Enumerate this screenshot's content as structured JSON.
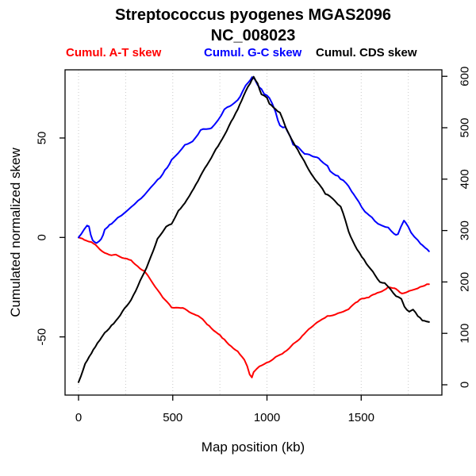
{
  "chart": {
    "title": "Streptococcus pyogenes MGAS2096",
    "subtitle": "NC_008023",
    "xlabel": "Map position (kb)",
    "ylabel_left": "Cumulated normalized skew",
    "legend": [
      {
        "label": "Cumul. A-T skew",
        "color": "#FF0000"
      },
      {
        "label": "Cumul. G-C skew",
        "color": "#0000FF"
      },
      {
        "label": "Cumul. CDS skew",
        "color": "#000000"
      }
    ]
  },
  "chart_data": {
    "type": "line",
    "title": "Streptococcus pyogenes MGAS2096",
    "subtitle": "NC_008023",
    "xlabel": "Map position (kb)",
    "ylabel_left": "Cumulated normalized skew",
    "legend_position": "top",
    "grid": "vertical-dotted",
    "grid_color": "#C8C8C8",
    "gridlines_kb": [
      0,
      250,
      500,
      750,
      1000,
      1250,
      1500,
      1750
    ],
    "x_ticks": [
      0,
      500,
      1000,
      1500
    ],
    "y_left_ticks": [
      -50,
      0,
      50
    ],
    "y_right_ticks": [
      0,
      100,
      200,
      300,
      400,
      500,
      600
    ],
    "x_range_kb": [
      0,
      1928
    ],
    "y_left_range": [
      -82,
      84
    ],
    "y_right_range": [
      -20,
      612
    ],
    "series": [
      {
        "name": "Cumul. A-T skew",
        "color": "#FF0000",
        "axis": "left",
        "points": [
          [
            0,
            0
          ],
          [
            20,
            -1
          ],
          [
            40,
            -2
          ],
          [
            68,
            -3
          ],
          [
            100,
            -5
          ],
          [
            139,
            -7.5
          ],
          [
            175,
            -8.5
          ],
          [
            209,
            -9
          ],
          [
            245,
            -10
          ],
          [
            279,
            -11.5
          ],
          [
            300,
            -13
          ],
          [
            315,
            -14.5
          ],
          [
            349,
            -17
          ],
          [
            367,
            -19.5
          ],
          [
            385,
            -22
          ],
          [
            419,
            -26
          ],
          [
            447,
            -30
          ],
          [
            470,
            -32
          ],
          [
            494,
            -34.5
          ],
          [
            530,
            -35.5
          ],
          [
            564,
            -36
          ],
          [
            600,
            -38
          ],
          [
            634,
            -40
          ],
          [
            670,
            -42.5
          ],
          [
            705,
            -45.5
          ],
          [
            740,
            -48.5
          ],
          [
            774,
            -51.5
          ],
          [
            810,
            -54.5
          ],
          [
            845,
            -57.5
          ],
          [
            880,
            -62
          ],
          [
            895,
            -65
          ],
          [
            908,
            -69
          ],
          [
            920,
            -70.5
          ],
          [
            929,
            -68
          ],
          [
            945,
            -66.5
          ],
          [
            960,
            -65
          ],
          [
            999,
            -62.5
          ],
          [
            1035,
            -61
          ],
          [
            1069,
            -59
          ],
          [
            1105,
            -56.5
          ],
          [
            1139,
            -54
          ],
          [
            1175,
            -50.5
          ],
          [
            1209,
            -47.5
          ],
          [
            1245,
            -44
          ],
          [
            1279,
            -42
          ],
          [
            1321,
            -40
          ],
          [
            1349,
            -39.5
          ],
          [
            1391,
            -38
          ],
          [
            1433,
            -36
          ],
          [
            1470,
            -33
          ],
          [
            1503,
            -30.5
          ],
          [
            1540,
            -29.5
          ],
          [
            1573,
            -28.5
          ],
          [
            1610,
            -26.5
          ],
          [
            1643,
            -24.5
          ],
          [
            1665,
            -25
          ],
          [
            1685,
            -26
          ],
          [
            1705,
            -27.5
          ],
          [
            1727,
            -28
          ],
          [
            1755,
            -27
          ],
          [
            1783,
            -26
          ],
          [
            1800,
            -25.5
          ],
          [
            1825,
            -24.5
          ],
          [
            1860,
            -23.5
          ]
        ]
      },
      {
        "name": "Cumul. G-C skew",
        "color": "#0000FF",
        "axis": "left",
        "points": [
          [
            0,
            0
          ],
          [
            15,
            2
          ],
          [
            30,
            4.5
          ],
          [
            45,
            6.5
          ],
          [
            55,
            6
          ],
          [
            65,
            2
          ],
          [
            75,
            -0.5
          ],
          [
            85,
            -1.5
          ],
          [
            95,
            -2
          ],
          [
            110,
            -1.5
          ],
          [
            120,
            -0.5
          ],
          [
            130,
            1.5
          ],
          [
            139,
            4
          ],
          [
            155,
            5.5
          ],
          [
            175,
            7
          ],
          [
            192,
            8.5
          ],
          [
            209,
            10
          ],
          [
            227,
            11
          ],
          [
            245,
            12.5
          ],
          [
            262,
            13.5
          ],
          [
            279,
            15
          ],
          [
            297,
            16.5
          ],
          [
            315,
            18
          ],
          [
            332,
            19
          ],
          [
            349,
            20.5
          ],
          [
            367,
            22.5
          ],
          [
            385,
            24.5
          ],
          [
            402,
            26.5
          ],
          [
            419,
            28.5
          ],
          [
            433,
            30
          ],
          [
            447,
            32
          ],
          [
            458,
            34
          ],
          [
            470,
            35
          ],
          [
            482,
            37
          ],
          [
            494,
            39
          ],
          [
            512,
            41
          ],
          [
            530,
            43
          ],
          [
            548,
            45
          ],
          [
            564,
            47
          ],
          [
            578,
            47.5
          ],
          [
            590,
            48
          ],
          [
            605,
            48.5
          ],
          [
            620,
            50
          ],
          [
            634,
            51.5
          ],
          [
            648,
            53.5
          ],
          [
            662,
            54
          ],
          [
            678,
            54
          ],
          [
            695,
            54.5
          ],
          [
            705,
            55
          ],
          [
            722,
            57
          ],
          [
            740,
            59
          ],
          [
            757,
            61.5
          ],
          [
            774,
            64.5
          ],
          [
            790,
            65.5
          ],
          [
            810,
            66.5
          ],
          [
            828,
            68
          ],
          [
            845,
            69.5
          ],
          [
            858,
            71
          ],
          [
            872,
            74
          ],
          [
            887,
            77
          ],
          [
            900,
            78.5
          ],
          [
            912,
            80
          ],
          [
            921,
            81
          ],
          [
            935,
            80
          ],
          [
            950,
            77
          ],
          [
            971,
            74.5
          ],
          [
            985,
            72
          ],
          [
            1000,
            71
          ],
          [
            1013,
            70
          ],
          [
            1028,
            67
          ],
          [
            1045,
            63
          ],
          [
            1058,
            59
          ],
          [
            1069,
            56.5
          ],
          [
            1085,
            55.5
          ],
          [
            1097,
            55.5
          ],
          [
            1110,
            53
          ],
          [
            1125,
            50.5
          ],
          [
            1139,
            47
          ],
          [
            1155,
            46
          ],
          [
            1175,
            44.5
          ],
          [
            1200,
            42.5
          ],
          [
            1225,
            41.5
          ],
          [
            1245,
            41
          ],
          [
            1265,
            41
          ],
          [
            1285,
            39
          ],
          [
            1300,
            38
          ],
          [
            1321,
            36.5
          ],
          [
            1335,
            34
          ],
          [
            1349,
            33
          ],
          [
            1365,
            32
          ],
          [
            1377,
            31.5
          ],
          [
            1390,
            30
          ],
          [
            1405,
            29
          ],
          [
            1420,
            27.5
          ],
          [
            1433,
            26
          ],
          [
            1450,
            23
          ],
          [
            1470,
            20
          ],
          [
            1487,
            17.5
          ],
          [
            1503,
            15
          ],
          [
            1520,
            13
          ],
          [
            1540,
            11
          ],
          [
            1557,
            9.5
          ],
          [
            1573,
            8
          ],
          [
            1590,
            7
          ],
          [
            1610,
            6
          ],
          [
            1628,
            5
          ],
          [
            1643,
            4.5
          ],
          [
            1660,
            3
          ],
          [
            1675,
            1.5
          ],
          [
            1685,
            1
          ],
          [
            1695,
            1.5
          ],
          [
            1710,
            5
          ],
          [
            1727,
            8.5
          ],
          [
            1738,
            7
          ],
          [
            1750,
            5
          ],
          [
            1765,
            2.5
          ],
          [
            1783,
            0.5
          ],
          [
            1800,
            -1.5
          ],
          [
            1815,
            -3
          ],
          [
            1825,
            -4
          ],
          [
            1840,
            -5.5
          ],
          [
            1860,
            -7
          ]
        ]
      },
      {
        "name": "Cumul. CDS skew",
        "color": "#000000",
        "axis": "right",
        "points": [
          [
            0,
            5
          ],
          [
            35,
            40
          ],
          [
            68,
            62
          ],
          [
            100,
            80
          ],
          [
            139,
            100
          ],
          [
            175,
            115
          ],
          [
            209,
            128
          ],
          [
            245,
            148
          ],
          [
            279,
            166
          ],
          [
            315,
            192
          ],
          [
            349,
            218
          ],
          [
            385,
            250
          ],
          [
            419,
            284
          ],
          [
            447,
            300
          ],
          [
            465,
            310
          ],
          [
            494,
            316
          ],
          [
            515,
            328
          ],
          [
            530,
            340
          ],
          [
            564,
            352
          ],
          [
            600,
            376
          ],
          [
            634,
            398
          ],
          [
            670,
            420
          ],
          [
            705,
            440
          ],
          [
            740,
            462
          ],
          [
            774,
            484
          ],
          [
            810,
            512
          ],
          [
            845,
            536
          ],
          [
            865,
            552
          ],
          [
            887,
            570
          ],
          [
            910,
            586
          ],
          [
            929,
            600
          ],
          [
            950,
            588
          ],
          [
            971,
            566
          ],
          [
            1000,
            560
          ],
          [
            1013,
            548
          ],
          [
            1045,
            536
          ],
          [
            1069,
            530
          ],
          [
            1100,
            500
          ],
          [
            1139,
            474
          ],
          [
            1175,
            450
          ],
          [
            1209,
            428
          ],
          [
            1245,
            406
          ],
          [
            1279,
            388
          ],
          [
            1310,
            370
          ],
          [
            1335,
            366
          ],
          [
            1360,
            358
          ],
          [
            1391,
            346
          ],
          [
            1415,
            320
          ],
          [
            1433,
            298
          ],
          [
            1465,
            272
          ],
          [
            1503,
            250
          ],
          [
            1540,
            230
          ],
          [
            1573,
            214
          ],
          [
            1600,
            200
          ],
          [
            1625,
            198
          ],
          [
            1655,
            184
          ],
          [
            1685,
            172
          ],
          [
            1713,
            168
          ],
          [
            1730,
            152
          ],
          [
            1755,
            142
          ],
          [
            1775,
            146
          ],
          [
            1800,
            134
          ],
          [
            1825,
            126
          ],
          [
            1845,
            124
          ],
          [
            1860,
            122
          ]
        ]
      }
    ]
  }
}
